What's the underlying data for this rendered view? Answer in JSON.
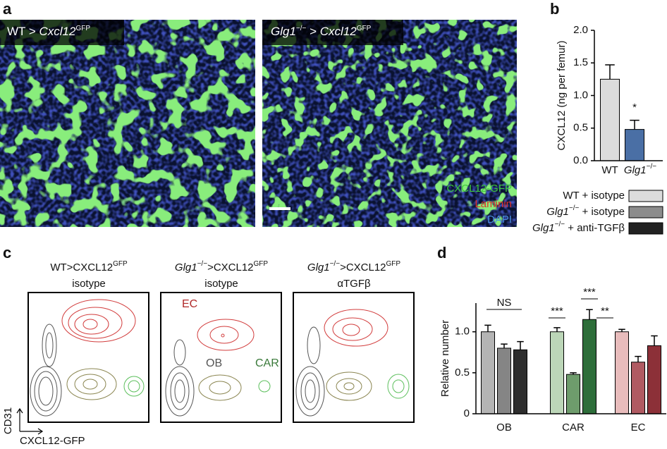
{
  "panel_labels": [
    "a",
    "b",
    "c",
    "d"
  ],
  "images": [
    {
      "label": [
        {
          "t": "WT > "
        },
        {
          "t": "Cxcl12",
          "i": true
        },
        {
          "t": "GFP",
          "sup": true
        }
      ]
    },
    {
      "label": [
        {
          "t": "Glg1",
          "i": true
        },
        {
          "t": "−/−",
          "sup": true
        },
        {
          "t": " > "
        },
        {
          "t": "Cxcl12",
          "i": true
        },
        {
          "t": "GFP",
          "sup": true
        }
      ]
    }
  ],
  "stain_legend": [
    {
      "text": "CXCL12-GFP",
      "color": "#3cc83c"
    },
    {
      "text": "Laminin",
      "color": "#e0302a"
    },
    {
      "text": "DAPI",
      "color": "#4a90e0"
    }
  ],
  "legend": [
    {
      "label": [
        {
          "t": "WT + isotype"
        }
      ],
      "color": "#dcdcdc"
    },
    {
      "label": [
        {
          "t": "Glg1",
          "i": true
        },
        {
          "t": "−/−",
          "sup": true
        },
        {
          "t": " + isotype"
        }
      ],
      "color": "#8c8c8c"
    },
    {
      "label": [
        {
          "t": "Glg1",
          "i": true
        },
        {
          "t": "−/−",
          "sup": true
        },
        {
          "t": " + anti-TGFβ"
        }
      ],
      "color": "#222222"
    }
  ],
  "flow": {
    "plots": [
      {
        "title": [
          {
            "t": "WT>CXCL12"
          },
          {
            "t": "GFP",
            "sup": true
          }
        ],
        "subtitle": "isotype"
      },
      {
        "title": [
          {
            "t": "Glg1",
            "i": true
          },
          {
            "t": "−/−",
            "sup": true
          },
          {
            "t": ">CXCL12"
          },
          {
            "t": "GFP",
            "sup": true
          }
        ],
        "subtitle": "isotype",
        "annotations": [
          "EC",
          "OB",
          "CAR"
        ]
      },
      {
        "title": [
          {
            "t": "Glg1",
            "i": true
          },
          {
            "t": "−/−",
            "sup": true
          },
          {
            "t": ">CXCL12"
          },
          {
            "t": "GFP",
            "sup": true
          }
        ],
        "subtitle": "αTGFβ"
      }
    ],
    "x_label": "CXCL12-GFP",
    "y_label": "CD31"
  },
  "chart_data": [
    {
      "type": "bar",
      "y_label": "CXCL12 (ng per femur)",
      "categories": [
        [
          {
            "t": "WT"
          }
        ],
        [
          {
            "t": "Glg1",
            "i": true
          },
          {
            "t": "−/−",
            "sup": true
          }
        ]
      ],
      "series": [
        {
          "colors": [
            "#dcdcdc",
            "#4a6fa5"
          ],
          "values": [
            1.25,
            0.48
          ],
          "errors": [
            0.22,
            0.14
          ]
        }
      ],
      "ylim": [
        0,
        2.0
      ],
      "yticks": [
        {
          "value": 0,
          "label": "0.0"
        },
        0.5,
        {
          "value": 1.0,
          "label": "1.0"
        },
        1.5,
        {
          "value": 2.0,
          "label": "2.0"
        }
      ],
      "annotations": [
        "*"
      ]
    },
    {
      "type": "bar",
      "y_label": "Relative number",
      "categories": [
        [
          {
            "t": "OB"
          }
        ],
        [
          {
            "t": "CAR"
          }
        ],
        [
          {
            "t": "EC"
          }
        ]
      ],
      "series": [
        {
          "colors": [
            "#b4b4b4",
            "#bcd6b8",
            "#e8bcbc"
          ],
          "values": [
            1.0,
            1.0,
            1.0
          ],
          "errors": [
            0.08,
            0.05,
            0.03
          ]
        },
        {
          "colors": [
            "#858585",
            "#6e9c6c",
            "#b05a62"
          ],
          "values": [
            0.8,
            0.48,
            0.63
          ],
          "errors": [
            0.05,
            0.02,
            0.07
          ]
        },
        {
          "colors": [
            "#2e2e2e",
            "#2e6e3a",
            "#8c3038"
          ],
          "values": [
            0.78,
            1.15,
            0.83
          ],
          "errors": [
            0.1,
            0.12,
            0.12
          ]
        }
      ],
      "ylim": [
        0,
        1.35
      ],
      "yticks": [
        0,
        0.5,
        {
          "value": 1.0,
          "label": "1.0"
        }
      ],
      "annotations": [
        "NS",
        "***",
        "***",
        "**"
      ]
    }
  ]
}
